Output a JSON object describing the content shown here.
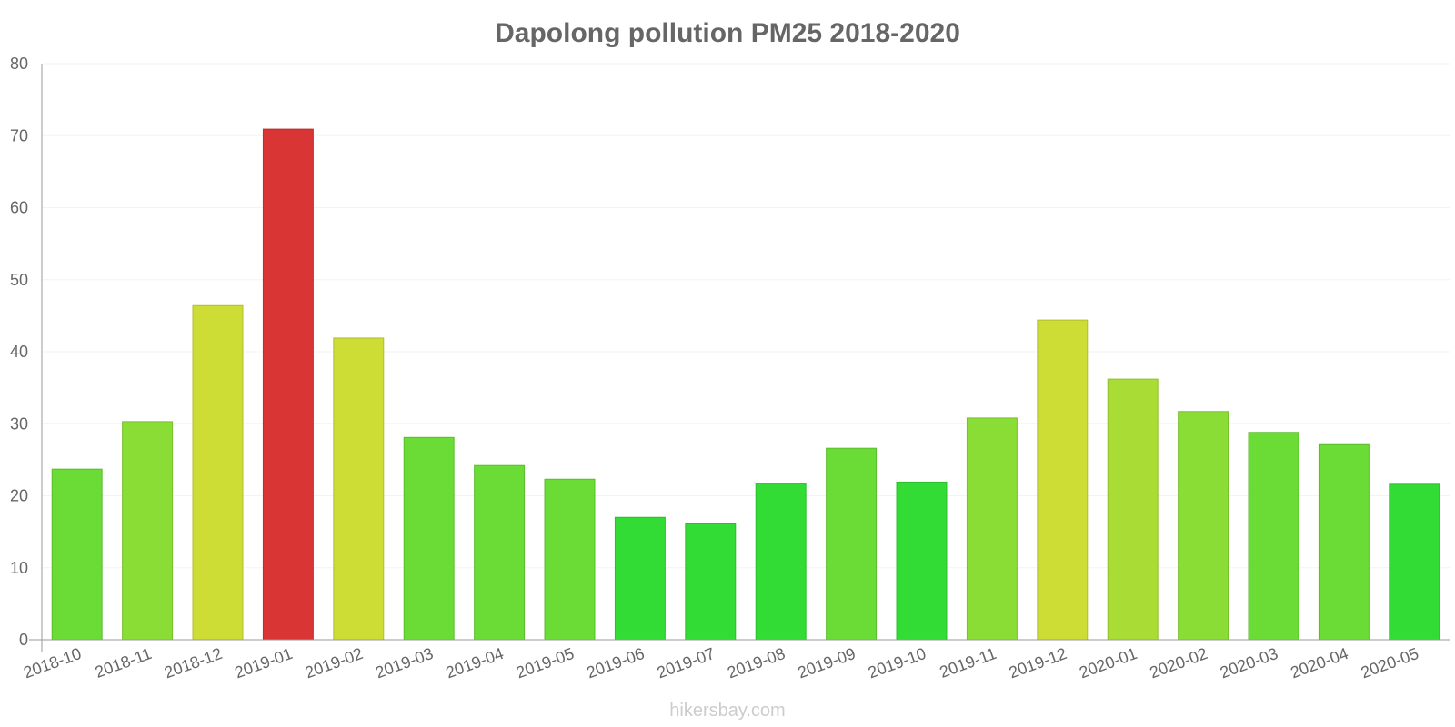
{
  "chart_data": {
    "type": "bar",
    "title": "Dapolong pollution PM25 2018-2020",
    "xlabel": "",
    "ylabel": "",
    "ylim": [
      0,
      80
    ],
    "yticks": [
      0,
      10,
      20,
      30,
      40,
      50,
      60,
      70,
      80
    ],
    "grid": true,
    "categories": [
      "2018-10",
      "2018-11",
      "2018-12",
      "2019-01",
      "2019-02",
      "2019-03",
      "2019-04",
      "2019-05",
      "2019-06",
      "2019-07",
      "2019-08",
      "2019-09",
      "2019-10",
      "2019-11",
      "2019-12",
      "2020-01",
      "2020-02",
      "2020-03",
      "2020-04",
      "2020-05"
    ],
    "values": [
      23.7,
      30.3,
      46.4,
      70.9,
      41.9,
      28.1,
      24.2,
      22.3,
      17.0,
      16.1,
      21.7,
      26.6,
      21.9,
      30.8,
      44.4,
      36.2,
      31.7,
      28.8,
      27.1,
      21.6
    ],
    "colors": [
      "#6bdc35",
      "#8add35",
      "#cddd35",
      "#da3535",
      "#cddd35",
      "#6bdc35",
      "#6bdc35",
      "#6bdc35",
      "#33dc35",
      "#33dc35",
      "#33dc35",
      "#6bdc35",
      "#33dc35",
      "#8add35",
      "#cddd35",
      "#a9dc35",
      "#8add35",
      "#6bdc35",
      "#6bdc35",
      "#33dc35"
    ],
    "stroke_colors": [
      "#5bbc2d",
      "#78bd2d",
      "#b0bd2d",
      "#bb2d2d",
      "#b0bd2d",
      "#5bbc2d",
      "#5bbc2d",
      "#5bbc2d",
      "#2bbd2d",
      "#2bbd2d",
      "#2bbd2d",
      "#5bbc2d",
      "#2bbd2d",
      "#78bd2d",
      "#b0bd2d",
      "#91bd2d",
      "#78bd2d",
      "#5bbc2d",
      "#5bbc2d",
      "#2bbd2d"
    ]
  },
  "credit": "hikersbay.com"
}
